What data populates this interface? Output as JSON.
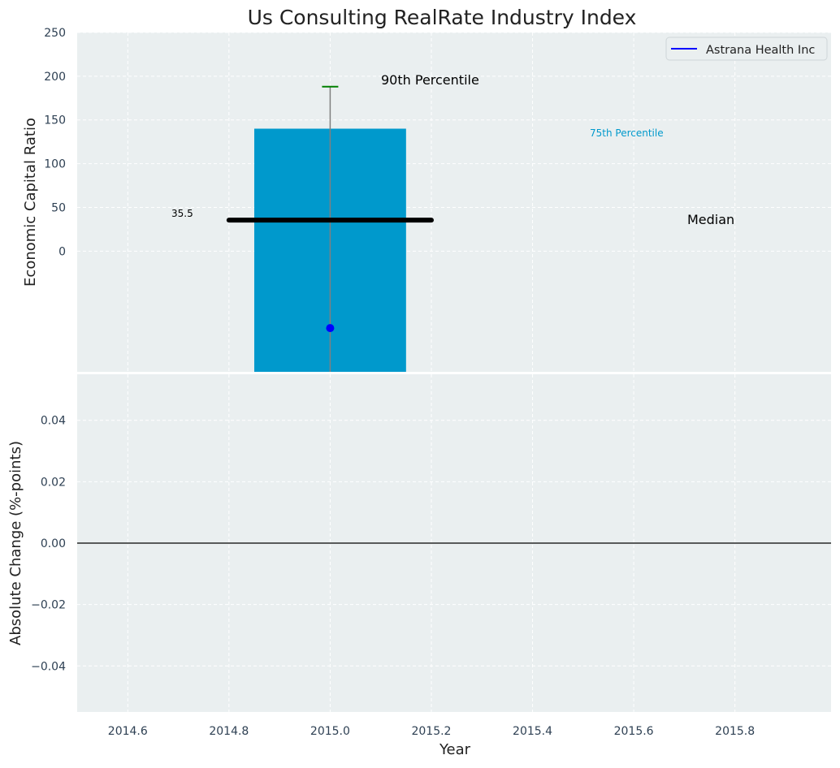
{
  "chart_data": {
    "type": "bar",
    "title": "Us Consulting RealRate Industry Index",
    "colors": {
      "plot_bg": "#eaeff0",
      "grid": "#ffffff",
      "bar": "#0099cc",
      "median_line": "#000000",
      "p90_cap": "#008000",
      "whisker": "#808080",
      "company_point": "#0000ff",
      "p75_label": "#0099cc",
      "tick_label": "#2e4053",
      "zero_line": "#000000"
    },
    "top_panel": {
      "ylabel": "Economic Capital Ratio",
      "ylim": [
        -138,
        250
      ],
      "yticks": [
        0,
        50,
        100,
        150,
        200,
        250
      ],
      "bar": {
        "x": 2015.0,
        "width": 0.3,
        "bottom": -138,
        "top": 140
      },
      "median": {
        "value": 35.5,
        "x_start": 2014.8,
        "x_end": 2015.2,
        "label": "Median",
        "value_label": "35.5"
      },
      "percentile_90": {
        "value": 188,
        "label": "90th Percentile"
      },
      "percentile_75": {
        "value": 140,
        "label": "75th Percentile"
      },
      "company_point": {
        "x": 2015.0,
        "value": -88
      },
      "legend": [
        {
          "label": "Astrana Health Inc"
        }
      ]
    },
    "bottom_panel": {
      "ylabel": "Absolute Change (%-points)",
      "xlabel": "Year",
      "ylim": [
        -0.055,
        0.055
      ],
      "yticks": [
        "0.04",
        "0.02",
        "0.00",
        "−0.02",
        "−0.04"
      ],
      "ytick_values": [
        0.04,
        0.02,
        0.0,
        -0.02,
        -0.04
      ],
      "zero_line": 0.0
    },
    "xlim": [
      2014.5,
      2015.99
    ],
    "xticks": [
      "2014.6",
      "2014.8",
      "2015.0",
      "2015.2",
      "2015.4",
      "2015.6",
      "2015.8"
    ],
    "xtick_values": [
      2014.6,
      2014.8,
      2015.0,
      2015.2,
      2015.4,
      2015.6,
      2015.8
    ]
  }
}
